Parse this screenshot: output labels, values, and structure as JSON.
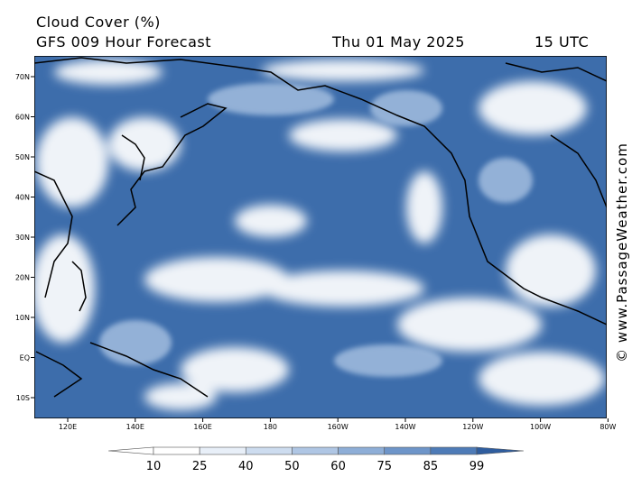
{
  "header": {
    "title": "Cloud Cover (%)",
    "subtitle": "GFS 009 Hour Forecast",
    "date": "Thu 01 May 2025",
    "time": "15 UTC"
  },
  "map": {
    "lat_labels": [
      "70N",
      "60N",
      "50N",
      "40N",
      "30N",
      "20N",
      "10N",
      "EQ",
      "10S"
    ],
    "lon_labels": [
      "120E",
      "140E",
      "160E",
      "180",
      "160W",
      "140W",
      "120W",
      "100W",
      "80W"
    ]
  },
  "colorbar": {
    "labels": [
      10,
      25,
      40,
      50,
      60,
      75,
      85,
      99
    ]
  },
  "watermark": "© www.PassageWeather.com"
}
